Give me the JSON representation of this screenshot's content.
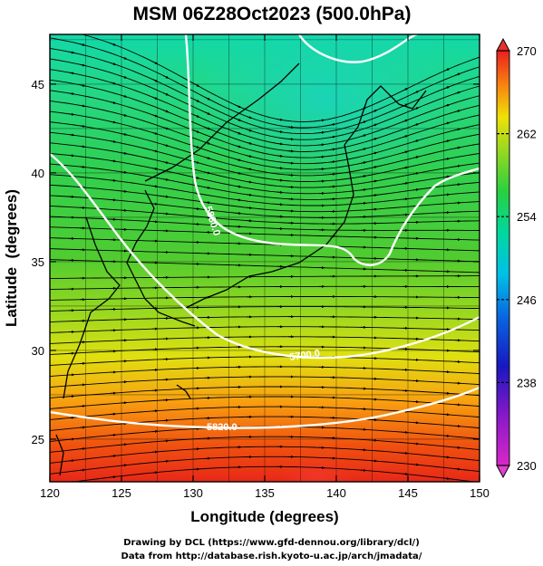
{
  "title": "MSM 06Z28Oct2023 (500.0hPa)",
  "x_axis": {
    "label": "Longitude (degrees)",
    "ticks": [
      "120",
      "125",
      "130",
      "135",
      "140",
      "145",
      "150"
    ],
    "range": [
      120,
      150
    ]
  },
  "y_axis": {
    "label": "Latitude  (degrees)",
    "ticks": [
      "25",
      "30",
      "35",
      "40",
      "45"
    ],
    "range": [
      22.6,
      47.8
    ]
  },
  "colorbar": {
    "ticks": [
      "270",
      "262",
      "254",
      "246",
      "238",
      "230"
    ],
    "range": [
      230,
      270
    ],
    "colors": [
      "#e020c0",
      "#8010c8",
      "#1010c8",
      "#0060e0",
      "#00b8e8",
      "#00d8b0",
      "#20d060",
      "#60d020",
      "#c0e020",
      "#f8e000",
      "#f89000",
      "#f03010",
      "#e01818"
    ]
  },
  "contours": [
    {
      "label": "5880.0"
    },
    {
      "label": "5700.0"
    },
    {
      "label": "5820.0"
    }
  ],
  "credits": [
    "Drawing by DCL (https://www.gfd-dennou.org/library/dcl/)",
    "Data from http://database.rish.kyoto-u.ac.jp/arch/jmadata/"
  ],
  "colors": {
    "contour": "#ffffff",
    "streamline": "#000000",
    "coast": "#000000"
  }
}
